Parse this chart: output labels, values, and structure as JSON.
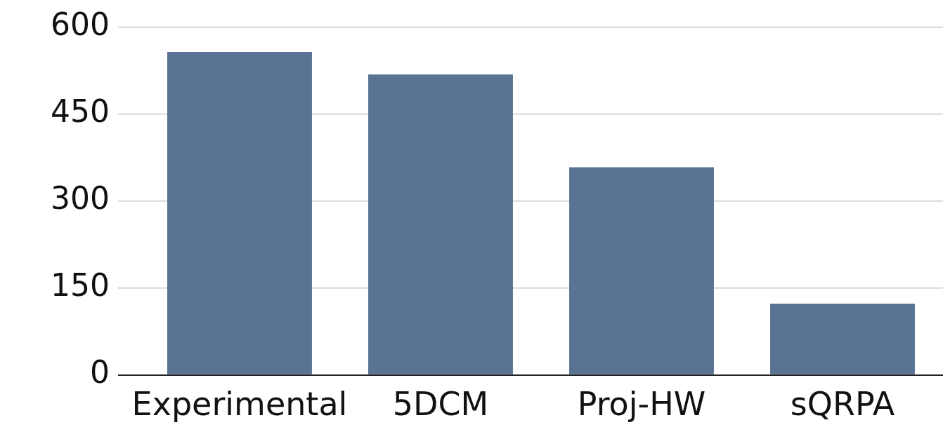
{
  "chart_data": {
    "type": "bar",
    "categories": [
      "Experimental",
      "5DCM",
      "Proj-HW",
      "sQRPA"
    ],
    "values": [
      557,
      518,
      358,
      123
    ],
    "color": "#5a7394",
    "ylim": [
      0,
      600
    ],
    "yticks": [
      0,
      150,
      300,
      450,
      600
    ],
    "grid": "y",
    "legend": false
  }
}
